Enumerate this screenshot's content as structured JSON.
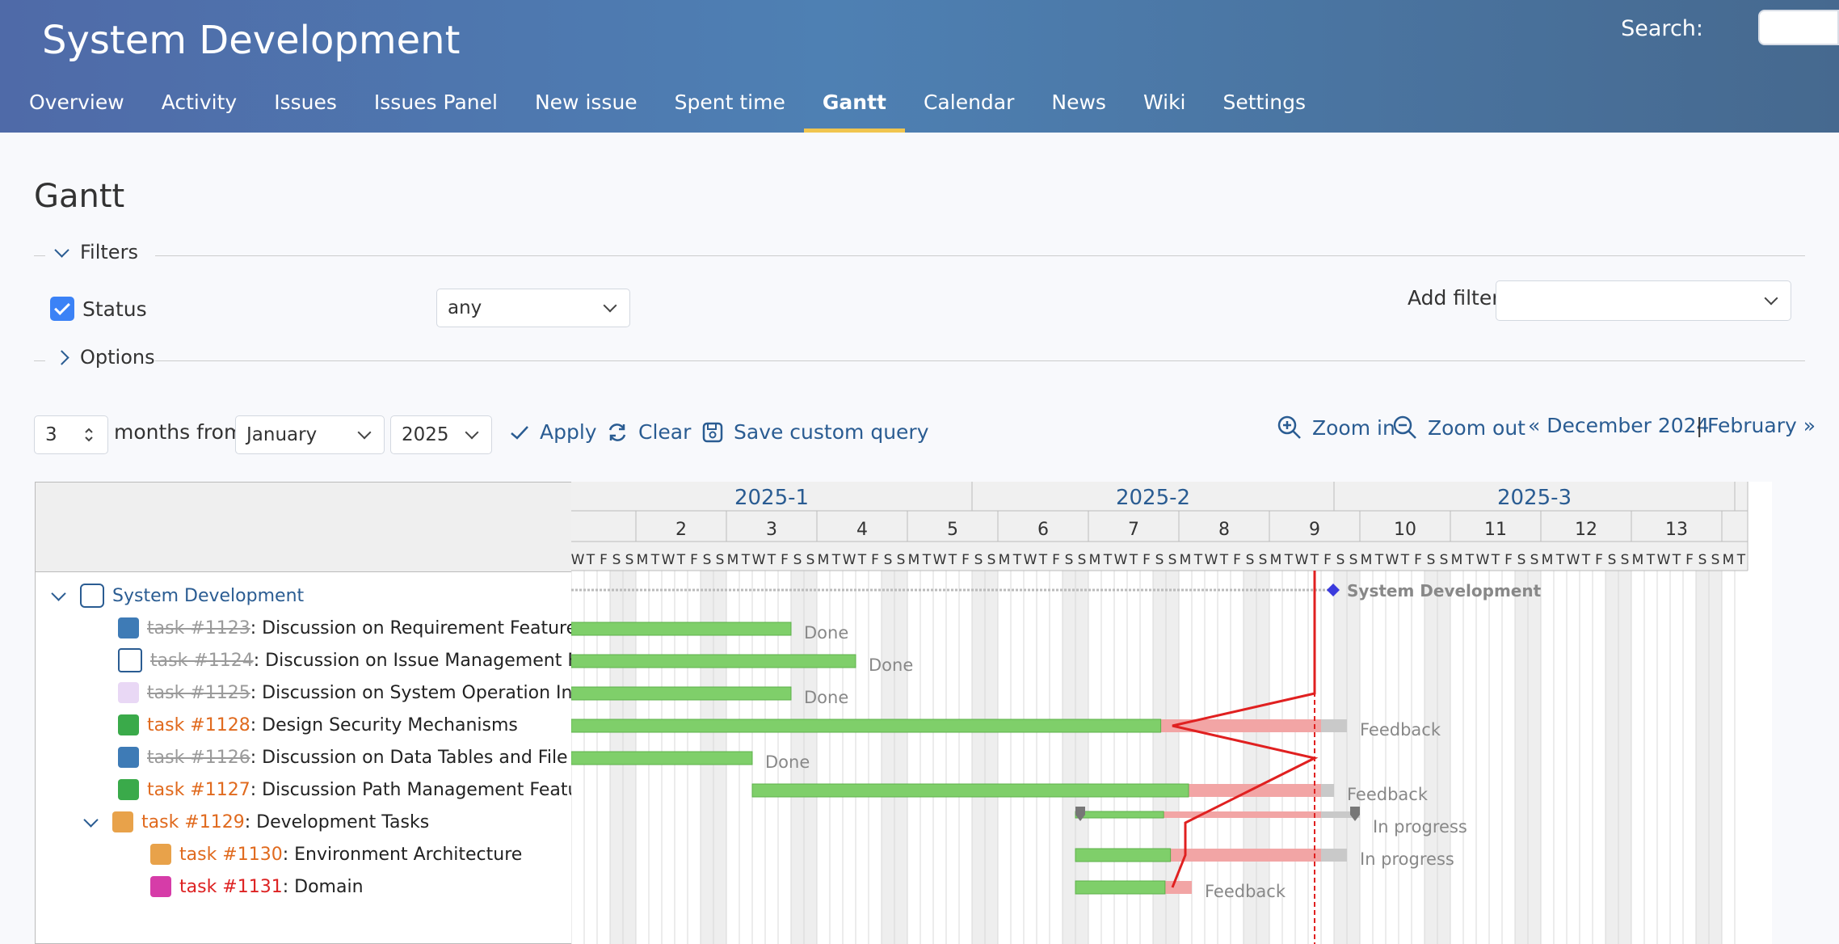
{
  "project": {
    "title": "System Development"
  },
  "search": {
    "label": "Search:"
  },
  "menu": {
    "items": [
      {
        "label": "Overview"
      },
      {
        "label": "Activity"
      },
      {
        "label": "Issues"
      },
      {
        "label": "Issues Panel"
      },
      {
        "label": "New issue"
      },
      {
        "label": "Spent time"
      },
      {
        "label": "Gantt"
      },
      {
        "label": "Calendar"
      },
      {
        "label": "News"
      },
      {
        "label": "Wiki"
      },
      {
        "label": "Settings"
      }
    ],
    "selected": "Gantt"
  },
  "page": {
    "title": "Gantt"
  },
  "filters": {
    "legend": "Filters",
    "status_label": "Status",
    "status_checked": true,
    "status_value": "any",
    "add_filter_label": "Add filter",
    "add_filter_value": ""
  },
  "options": {
    "legend": "Options"
  },
  "toolbar": {
    "months_value": "3",
    "months_label": "months from",
    "month_value": "January",
    "year_value": "2025",
    "apply": "Apply",
    "clear": "Clear",
    "save_query": "Save custom query",
    "zoom_in": "Zoom in",
    "zoom_out": "Zoom out",
    "prev": "« December 2024",
    "separator": "|",
    "next": "February »"
  },
  "colors": {
    "accent": "#2a5c92",
    "header_start": "#4f6aa8",
    "selected_tab_underline": "#f0c54f",
    "done_bar": "#7fcf6a",
    "late_bar": "#f2a5a5",
    "todo_bar": "#c9c9c9",
    "today_line": "#e02020",
    "progress_line": "#e02020",
    "weekend": "#eeeeee"
  },
  "gantt": {
    "months": [
      "2025-1",
      "2025-2",
      "2025-3"
    ],
    "weeks": [
      "2",
      "3",
      "4",
      "5",
      "6",
      "7",
      "8",
      "9",
      "10",
      "11",
      "12",
      "13"
    ],
    "first_day": "2025-01-01",
    "days_shown": 91,
    "today": "2025-02-27",
    "issues": [
      {
        "id": "project",
        "kind": "project",
        "level": 0,
        "prefix": "",
        "subject": "System Development",
        "icon": "project-icon",
        "start": "2025-01-01",
        "due": "2025-02-28",
        "status": "System Development",
        "done_ratio": 0,
        "closed": false,
        "progress_point": null
      },
      {
        "id": "1123",
        "kind": "task",
        "level": 1,
        "prefix": "task #1123",
        "subject": ": Discussion on Requirement Features",
        "icon": "discussion-icon",
        "start": "2025-01-01",
        "due": "2025-01-17",
        "status": "Done",
        "done_ratio": 100,
        "closed": true,
        "progress_point": "2025-02-27"
      },
      {
        "id": "1124",
        "kind": "task",
        "level": 1,
        "prefix": "task #1124",
        "subject": ": Discussion on Issue Management Features",
        "icon": "note-icon",
        "start": "2025-01-01",
        "due": "2025-01-22",
        "status": "Done",
        "done_ratio": 100,
        "closed": true,
        "progress_point": "2025-02-27"
      },
      {
        "id": "1125",
        "kind": "task",
        "level": 1,
        "prefix": "task #1125",
        "subject": ": Discussion on System Operation Interface Specification",
        "icon": "interface-icon",
        "start": "2025-01-01",
        "due": "2025-01-17",
        "status": "Done",
        "done_ratio": 100,
        "closed": true,
        "progress_point": "2025-02-27"
      },
      {
        "id": "1128",
        "kind": "task",
        "level": 1,
        "prefix": "task #1128",
        "subject": ": Design Security Mechanisms",
        "icon": "security-icon",
        "start": "2025-01-01",
        "due": "2025-03-01",
        "status": "Feedback",
        "done_ratio": 76,
        "closed": false,
        "progress_point": "2025-02-16"
      },
      {
        "id": "1126",
        "kind": "task",
        "level": 1,
        "prefix": "task #1126",
        "subject": ": Discussion on Data Tables and File Specifications",
        "icon": "discussion-icon",
        "start": "2025-01-01",
        "due": "2025-01-14",
        "status": "Done",
        "done_ratio": 100,
        "closed": true,
        "progress_point": "2025-02-27"
      },
      {
        "id": "1127",
        "kind": "task",
        "level": 1,
        "prefix": "task #1127",
        "subject": ": Discussion Path Management Feature",
        "icon": "security-icon",
        "start": "2025-01-15",
        "due": "2025-02-28",
        "status": "Feedback",
        "done_ratio": 75,
        "closed": false,
        "progress_point": "2025-02-22"
      },
      {
        "id": "1129",
        "kind": "parent",
        "level": 1,
        "prefix": "task #1129",
        "subject": ": Development Tasks",
        "icon": "team-icon",
        "start": "2025-02-09",
        "due": "2025-03-02",
        "status": "In progress",
        "done_ratio": 31,
        "closed": false,
        "progress_point": "2025-02-17"
      },
      {
        "id": "1130",
        "kind": "task",
        "level": 2,
        "prefix": "task #1130",
        "subject": ": Environment Architecture",
        "icon": "team-icon",
        "start": "2025-02-09",
        "due": "2025-03-01",
        "status": "In progress",
        "done_ratio": 35,
        "closed": false,
        "progress_point": "2025-02-17"
      },
      {
        "id": "1131",
        "kind": "task",
        "level": 2,
        "prefix": "task #1131",
        "subject": ": Domain",
        "icon": "domain-icon",
        "start": "2025-02-09",
        "due": "2025-02-17",
        "status": "Feedback",
        "done_ratio": 77,
        "closed": false,
        "progress_point": "2025-02-16"
      }
    ]
  }
}
